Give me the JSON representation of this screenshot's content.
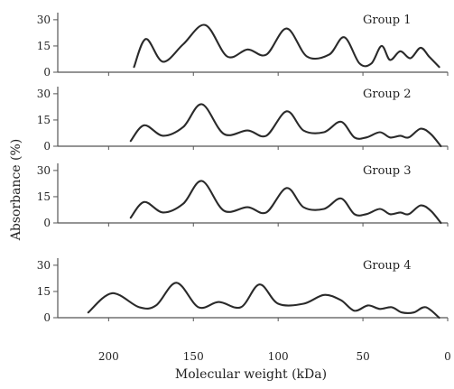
{
  "figure": {
    "xlabel": "Molecular weight (kDa)",
    "ylabel": "Absorbance (%)",
    "x_ticks": [
      200,
      150,
      100,
      50,
      0
    ]
  },
  "chart_data": [
    {
      "type": "line",
      "title": "Group 1",
      "xlim": [
        230,
        0
      ],
      "ylim": [
        0,
        32
      ],
      "y_ticks": [
        0,
        15,
        30
      ],
      "line_color": "#2a2a2a",
      "series": [
        {
          "x": [
            185,
            178,
            168,
            156,
            143,
            130,
            118,
            107,
            95,
            83,
            70,
            61,
            52,
            45,
            39,
            34,
            28,
            22,
            16,
            11,
            5
          ],
          "y": [
            3,
            19,
            6,
            16,
            27,
            9,
            13,
            10,
            25,
            9,
            10,
            20,
            5,
            5,
            15,
            7,
            12,
            8,
            14,
            9,
            3
          ]
        }
      ]
    },
    {
      "type": "line",
      "title": "Group 2",
      "xlim": [
        230,
        0
      ],
      "ylim": [
        0,
        32
      ],
      "y_ticks": [
        0,
        15,
        30
      ],
      "line_color": "#2a2a2a",
      "series": [
        {
          "x": [
            187,
            179,
            168,
            156,
            145,
            132,
            118,
            107,
            95,
            85,
            73,
            63,
            55,
            48,
            40,
            34,
            28,
            23,
            16,
            10,
            4
          ],
          "y": [
            3,
            12,
            6,
            11,
            24,
            7,
            9,
            6,
            20,
            9,
            8,
            14,
            5,
            5,
            8,
            5,
            6,
            5,
            10,
            7,
            0
          ]
        }
      ]
    },
    {
      "type": "line",
      "title": "Group 3",
      "xlim": [
        230,
        0
      ],
      "ylim": [
        0,
        32
      ],
      "y_ticks": [
        0,
        15,
        30
      ],
      "line_color": "#2a2a2a",
      "series": [
        {
          "x": [
            187,
            179,
            168,
            156,
            145,
            132,
            118,
            107,
            95,
            85,
            73,
            63,
            55,
            48,
            40,
            34,
            28,
            23,
            16,
            10,
            4
          ],
          "y": [
            3,
            12,
            6,
            11,
            24,
            7,
            9,
            6,
            20,
            9,
            8,
            14,
            5,
            5,
            8,
            5,
            6,
            5,
            10,
            7,
            0
          ]
        }
      ]
    },
    {
      "type": "line",
      "title": "Group 4",
      "xlim": [
        230,
        0
      ],
      "ylim": [
        0,
        32
      ],
      "y_ticks": [
        0,
        15,
        30
      ],
      "line_color": "#2a2a2a",
      "series": [
        {
          "x": [
            212,
            198,
            182,
            172,
            160,
            147,
            135,
            122,
            111,
            100,
            85,
            73,
            63,
            55,
            47,
            40,
            33,
            27,
            20,
            13,
            5
          ],
          "y": [
            3,
            14,
            6,
            7,
            20,
            6,
            9,
            6,
            19,
            8,
            8,
            13,
            10,
            4,
            7,
            5,
            6,
            3,
            3,
            6,
            0
          ]
        }
      ]
    }
  ]
}
